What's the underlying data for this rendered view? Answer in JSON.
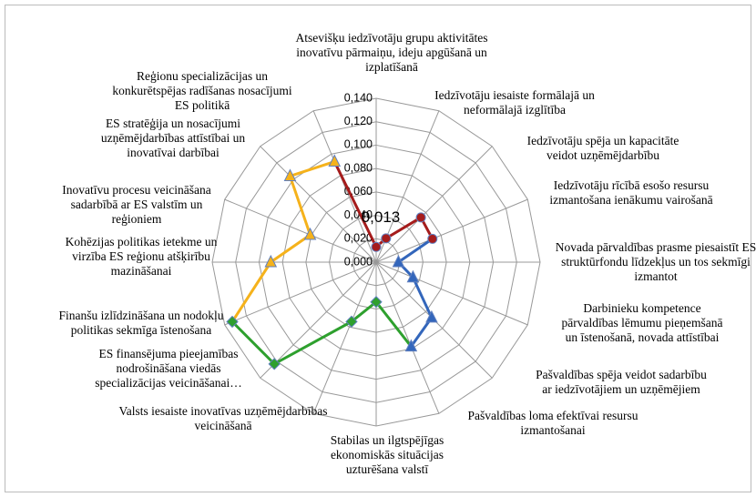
{
  "chart_data": {
    "type": "radar",
    "categories": [
      "Atsevišķu iedzīvotāju grupu aktivitātes inovatīvu pārmaiņu, ideju apgūšanā un izplatīšanā",
      "Iedzīvotāju iesaiste formālajā un neformālajā izglītība",
      "Iedzīvotāju spēja un kapacitāte veidot uzņēmējdarbību",
      "Iedzīvotāju rīcībā esošo resursu izmantošana ienākumu vairošanā",
      "Novada pārvaldības prasme piesaistīt ES struktūrfondu līdzekļus un tos sekmīgi izmantot",
      "Darbinieku kompetence pārvaldības lēmumu pieņemšanā un īstenošanā, novada attīstībai",
      "Pašvaldības spēja veidot sadarbību ar iedzīvotājiem un uzņēmējiem",
      "Pašvaldības loma efektīvai resursu izmantošanai",
      "Stabilas un ilgtspējīgas ekonomiskās situācijas uzturēšana valstī",
      "Valsts iesaiste inovatīvas uzņēmējdarbības veicināšanā",
      "ES finansējuma pieejamības nodrošināšana viedās specializācijas veicināšanai…",
      "Finanšu izlīdzināšana un nodokļu politikas sekmīga īstenošana",
      "Kohēzijas politikas ietekme un virzība ES reģionu atšķirību mazināšanai",
      "Inovatīvu procesu veicināšana sadarbībā ar ES valstīm un reģioniem",
      "ES stratēģija un nosacījumi uzņēmējdarbības attīstībai un inovatīvai darbībai",
      "Reģionu specializācijas un konkurētspējas radīšanas nosacījumi ES politikā"
    ],
    "series": [
      {
        "color": "#a51c1c",
        "marker": "circle",
        "values": [
          0.013,
          0.022,
          0.054,
          0.052,
          null,
          null,
          null,
          null,
          null,
          null,
          null,
          null,
          null,
          null,
          null,
          null
        ],
        "value_labels": [
          "0,013",
          null,
          null,
          null,
          null,
          null,
          null,
          null,
          null,
          null,
          null,
          null,
          null,
          null,
          null,
          null
        ]
      },
      {
        "color": "#3366bb",
        "marker": "triangle",
        "values": [
          null,
          null,
          null,
          null,
          0.019,
          0.034,
          0.067,
          0.078,
          null,
          null,
          null,
          null,
          null,
          null,
          null,
          null
        ]
      },
      {
        "color": "#2ea02e",
        "marker": "diamond",
        "values": [
          null,
          null,
          null,
          null,
          null,
          null,
          null,
          null,
          0.034,
          0.055,
          0.123,
          0.133,
          null,
          null,
          null,
          null
        ]
      },
      {
        "color": "#f5b21b",
        "marker": "triangle",
        "values": [
          null,
          null,
          null,
          null,
          null,
          null,
          null,
          null,
          null,
          null,
          null,
          null,
          0.09,
          0.061,
          0.104,
          0.093
        ]
      }
    ],
    "ylim": [
      0,
      0.14
    ],
    "yticks": [
      {
        "value": 0,
        "label": "0,000"
      },
      {
        "value": 0.02,
        "label": "0,020"
      },
      {
        "value": 0.04,
        "label": "0,040"
      },
      {
        "value": 0.06,
        "label": "0,060"
      },
      {
        "value": 0.08,
        "label": "0,080"
      },
      {
        "value": 0.1,
        "label": "0,100"
      },
      {
        "value": 0.12,
        "label": "0,120"
      },
      {
        "value": 0.14,
        "label": "0,140"
      }
    ],
    "grid": true
  }
}
